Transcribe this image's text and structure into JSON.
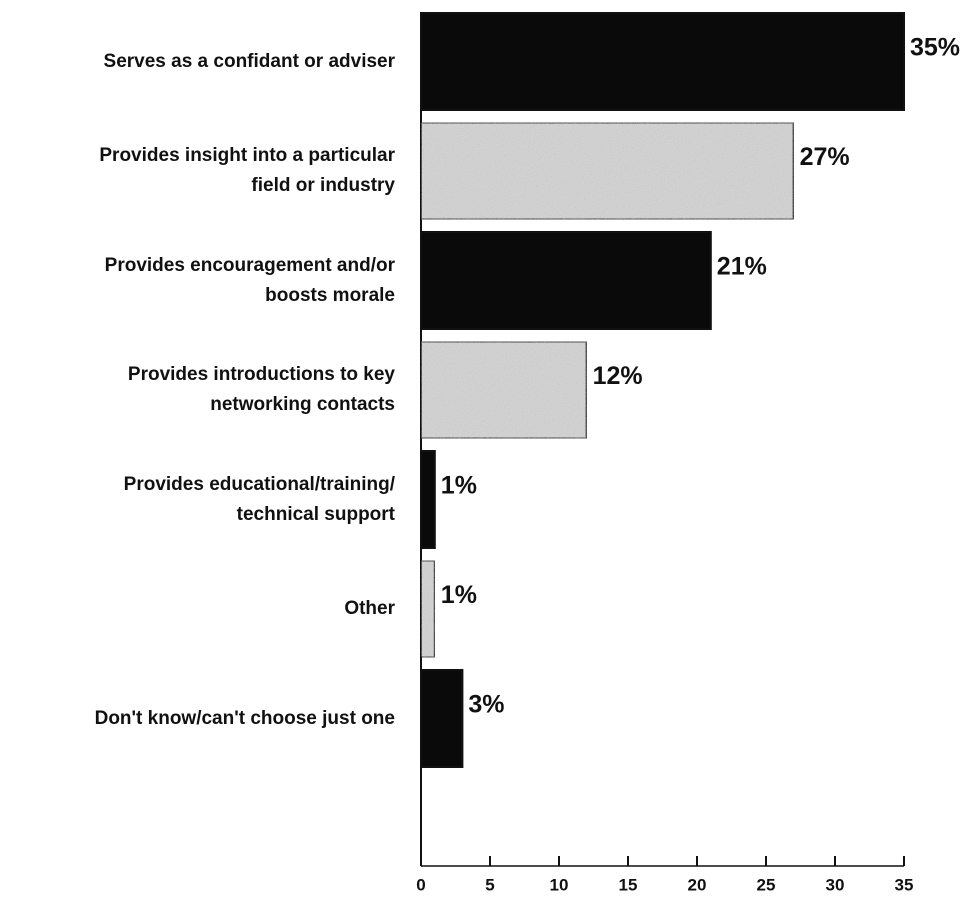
{
  "chart_data": {
    "type": "bar",
    "orientation": "horizontal",
    "categories": [
      "Serves as a confidant or adviser",
      "Provides insight into a particular\nfield or industry",
      "Provides encouragement and/or\nboosts morale",
      "Provides introductions to key\nnetworking contacts",
      "Provides educational/training/\ntechnical support",
      "Other",
      "Don't know/can't choose just one"
    ],
    "values": [
      35,
      27,
      21,
      12,
      1,
      1,
      3
    ],
    "value_labels": [
      "35%",
      "27%",
      "21%",
      "12%",
      "1%",
      "1%",
      "3%"
    ],
    "colors": [
      "#0a0a0a",
      "#d4d4d4",
      "#0a0a0a",
      "#d4d4d4",
      "#0a0a0a",
      "#d4d4d4",
      "#0a0a0a"
    ],
    "xlim": [
      0,
      35
    ],
    "xticks": [
      0,
      5,
      10,
      15,
      20,
      25,
      30,
      35
    ]
  }
}
